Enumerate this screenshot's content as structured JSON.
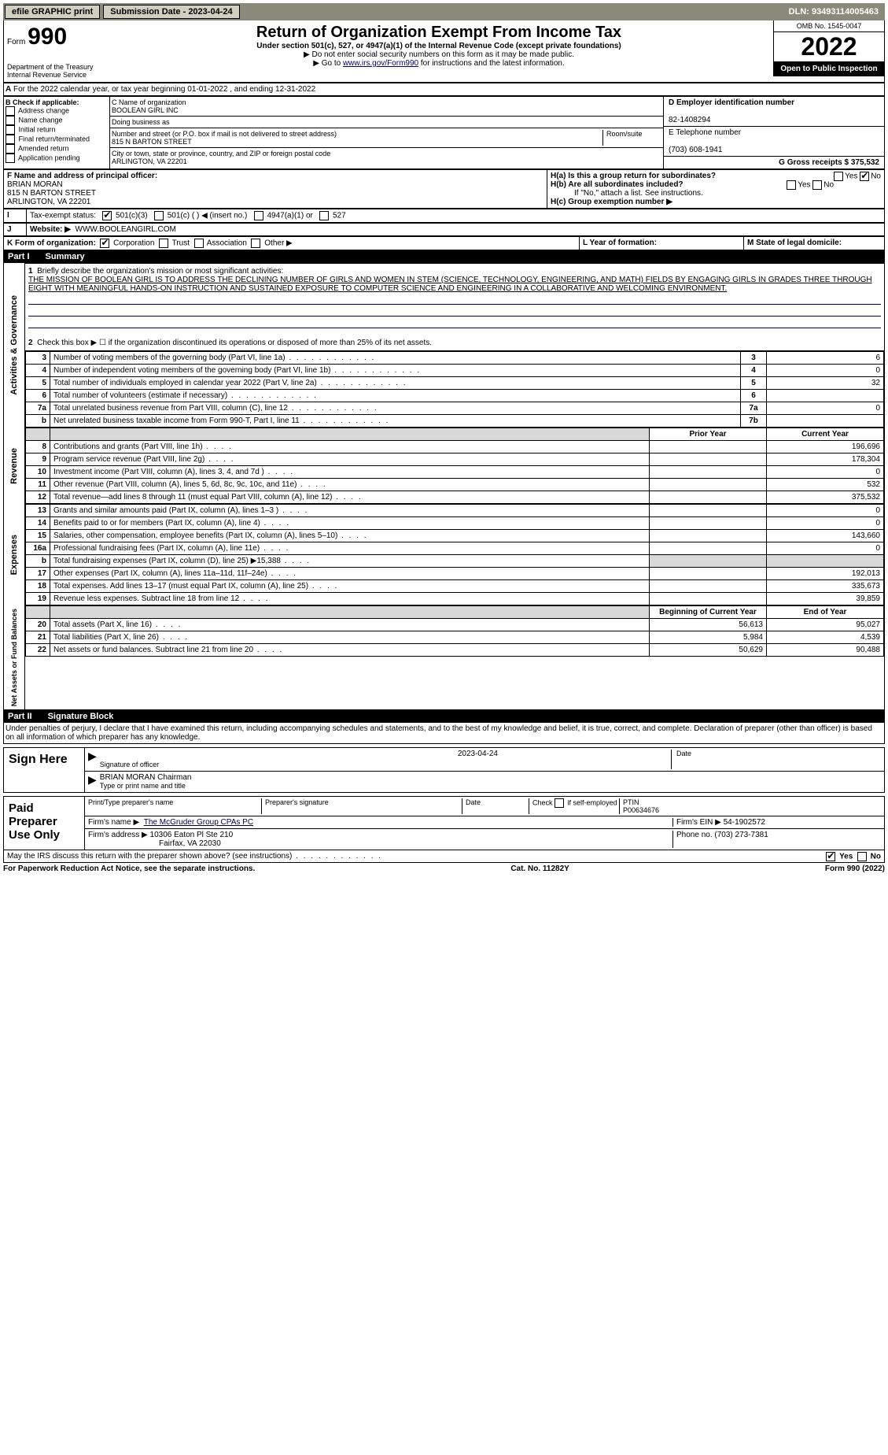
{
  "topbar": {
    "efile": "efile GRAPHIC print",
    "submission": "Submission Date - 2023-04-24",
    "dln": "DLN: 93493114005463"
  },
  "header": {
    "form_prefix": "Form",
    "form_num": "990",
    "title": "Return of Organization Exempt From Income Tax",
    "subtitle": "Under section 501(c), 527, or 4947(a)(1) of the Internal Revenue Code (except private foundations)",
    "ssn_note": "▶ Do not enter social security numbers on this form as it may be made public.",
    "goto": "▶ Go to ",
    "goto_link": "www.irs.gov/Form990",
    "goto_suffix": " for instructions and the latest information.",
    "omb": "OMB No. 1545-0047",
    "year": "2022",
    "inspect": "Open to Public Inspection",
    "dept": "Department of the Treasury Internal Revenue Service"
  },
  "rowA": {
    "prefix": "A",
    "text": "For the 2022 calendar year, or tax year beginning 01-01-2022     , and ending 12-31-2022"
  },
  "sectionB": {
    "title": "B Check if applicable:",
    "items": [
      "Address change",
      "Name change",
      "Initial return",
      "Final return/terminated",
      "Amended return",
      "Application pending"
    ]
  },
  "sectionC": {
    "c_label": "C Name of organization",
    "c_value": "BOOLEAN GIRL INC",
    "dba": "Doing business as",
    "street_label": "Number and street (or P.O. box if mail is not delivered to street address)",
    "street": "815 N BARTON STREET",
    "room": "Room/suite",
    "city_label": "City or town, state or province, country, and ZIP or foreign postal code",
    "city": "ARLINGTON, VA  22201"
  },
  "sectionD": {
    "d_label": "D Employer identification number",
    "d_value": "82-1408294",
    "e_label": "E Telephone number",
    "e_value": "(703) 608-1941",
    "g_label": "G Gross receipts $ 375,532"
  },
  "sectionF": {
    "label": "F  Name and address of principal officer:",
    "name": "BRIAN MORAN",
    "street": "815 N BARTON STREET",
    "city": "ARLINGTON, VA  22201"
  },
  "sectionH": {
    "ha": "H(a)  Is this a group return for subordinates?",
    "hb": "H(b)  Are all subordinates included?",
    "hb_note": "If \"No,\" attach a list. See instructions.",
    "hc": "H(c)  Group exemption number ▶",
    "yes": "Yes",
    "no": "No"
  },
  "rowI": {
    "label": "Tax-exempt status:",
    "opts": [
      "501(c)(3)",
      "501(c) (   ) ◀ (insert no.)",
      "4947(a)(1) or",
      "527"
    ]
  },
  "rowJ": {
    "label": "Website: ▶",
    "value": "WWW.BOOLEANGIRL.COM"
  },
  "rowK": {
    "label": "K Form of organization:",
    "opts": [
      "Corporation",
      "Trust",
      "Association",
      "Other ▶"
    ],
    "L": "L Year of formation:",
    "M": "M State of legal domicile:"
  },
  "part1": {
    "num": "Part I",
    "title": "Summary"
  },
  "summary": {
    "l1_label": "Briefly describe the organization's mission or most significant activities:",
    "l1_text": "THE MISSION OF BOOLEAN GIRL IS TO ADDRESS THE DECLINING NUMBER OF GIRLS AND WOMEN IN STEM (SCIENCE, TECHNOLOGY, ENGINEERING, AND MATH) FIELDS BY ENGAGING GIRLS IN GRADES THREE THROUGH EIGHT WITH MEANINGFUL HANDS-ON INSTRUCTION AND SUSTAINED EXPOSURE TO COMPUTER SCIENCE AND ENGINEERING IN A COLLABORATIVE AND WELCOMING ENVIRONMENT.",
    "l2": "Check this box ▶ ☐  if the organization discontinued its operations or disposed of more than 25% of its net assets.",
    "lines_gov": [
      {
        "n": "3",
        "t": "Number of voting members of the governing body (Part VI, line 1a)",
        "b": "3",
        "v": "6"
      },
      {
        "n": "4",
        "t": "Number of independent voting members of the governing body (Part VI, line 1b)",
        "b": "4",
        "v": "0"
      },
      {
        "n": "5",
        "t": "Total number of individuals employed in calendar year 2022 (Part V, line 2a)",
        "b": "5",
        "v": "32"
      },
      {
        "n": "6",
        "t": "Total number of volunteers (estimate if necessary)",
        "b": "6",
        "v": ""
      },
      {
        "n": "7a",
        "t": "Total unrelated business revenue from Part VIII, column (C), line 12",
        "b": "7a",
        "v": "0"
      },
      {
        "n": "b",
        "t": "Net unrelated business taxable income from Form 990-T, Part I, line 11",
        "b": "7b",
        "v": ""
      }
    ],
    "hdr_prior": "Prior Year",
    "hdr_cur": "Current Year",
    "lines_rev": [
      {
        "n": "8",
        "t": "Contributions and grants (Part VIII, line 1h)",
        "p": "",
        "c": "196,696"
      },
      {
        "n": "9",
        "t": "Program service revenue (Part VIII, line 2g)",
        "p": "",
        "c": "178,304"
      },
      {
        "n": "10",
        "t": "Investment income (Part VIII, column (A), lines 3, 4, and 7d )",
        "p": "",
        "c": "0"
      },
      {
        "n": "11",
        "t": "Other revenue (Part VIII, column (A), lines 5, 6d, 8c, 9c, 10c, and 11e)",
        "p": "",
        "c": "532"
      },
      {
        "n": "12",
        "t": "Total revenue—add lines 8 through 11 (must equal Part VIII, column (A), line 12)",
        "p": "",
        "c": "375,532"
      }
    ],
    "lines_exp": [
      {
        "n": "13",
        "t": "Grants and similar amounts paid (Part IX, column (A), lines 1–3 )",
        "p": "",
        "c": "0"
      },
      {
        "n": "14",
        "t": "Benefits paid to or for members (Part IX, column (A), line 4)",
        "p": "",
        "c": "0"
      },
      {
        "n": "15",
        "t": "Salaries, other compensation, employee benefits (Part IX, column (A), lines 5–10)",
        "p": "",
        "c": "143,660"
      },
      {
        "n": "16a",
        "t": "Professional fundraising fees (Part IX, column (A), line 11e)",
        "p": "",
        "c": "0"
      },
      {
        "n": "b",
        "t": "Total fundraising expenses (Part IX, column (D), line 25) ▶15,388",
        "p": "SHADE",
        "c": "SHADE"
      },
      {
        "n": "17",
        "t": "Other expenses (Part IX, column (A), lines 11a–11d, 11f–24e)",
        "p": "",
        "c": "192,013"
      },
      {
        "n": "18",
        "t": "Total expenses. Add lines 13–17 (must equal Part IX, column (A), line 25)",
        "p": "",
        "c": "335,673"
      },
      {
        "n": "19",
        "t": "Revenue less expenses. Subtract line 18 from line 12",
        "p": "",
        "c": "39,859"
      }
    ],
    "hdr_beg": "Beginning of Current Year",
    "hdr_end": "End of Year",
    "lines_net": [
      {
        "n": "20",
        "t": "Total assets (Part X, line 16)",
        "p": "56,613",
        "c": "95,027"
      },
      {
        "n": "21",
        "t": "Total liabilities (Part X, line 26)",
        "p": "5,984",
        "c": "4,539"
      },
      {
        "n": "22",
        "t": "Net assets or fund balances. Subtract line 21 from line 20",
        "p": "50,629",
        "c": "90,488"
      }
    ]
  },
  "side_labels": {
    "gov": "Activities & Governance",
    "rev": "Revenue",
    "exp": "Expenses",
    "net": "Net Assets or Fund Balances"
  },
  "part2": {
    "num": "Part II",
    "title": "Signature Block"
  },
  "sig": {
    "penalty": "Under penalties of perjury, I declare that I have examined this return, including accompanying schedules and statements, and to the best of my knowledge and belief, it is true, correct, and complete. Declaration of preparer (other than officer) is based on all information of which preparer has any knowledge.",
    "sign_here": "Sign Here",
    "sig_officer": "Signature of officer",
    "date": "Date",
    "date_val": "2023-04-24",
    "name_title": "BRIAN MORAN  Chairman",
    "type_name": "Type or print name and title",
    "paid": "Paid Preparer Use Only",
    "h1": "Print/Type preparer's name",
    "h2": "Preparer's signature",
    "h3": "Date",
    "h4_a": "Check",
    "h4_b": "if self-employed",
    "h5": "PTIN",
    "ptin": "P00634676",
    "firm_name_l": "Firm's name     ▶",
    "firm_name": "The McGruder Group CPAs PC",
    "firm_ein_l": "Firm's EIN ▶",
    "firm_ein": "54-1902572",
    "firm_addr_l": "Firm's address ▶",
    "firm_addr1": "10306 Eaton Pl Ste 210",
    "firm_addr2": "Fairfax, VA  22030",
    "phone_l": "Phone no.",
    "phone": "(703) 273-7381",
    "discuss": "May the IRS discuss this return with the preparer shown above? (see instructions)"
  },
  "footer": {
    "left": "For Paperwork Reduction Act Notice, see the separate instructions.",
    "mid": "Cat. No. 11282Y",
    "right": "Form 990 (2022)"
  }
}
